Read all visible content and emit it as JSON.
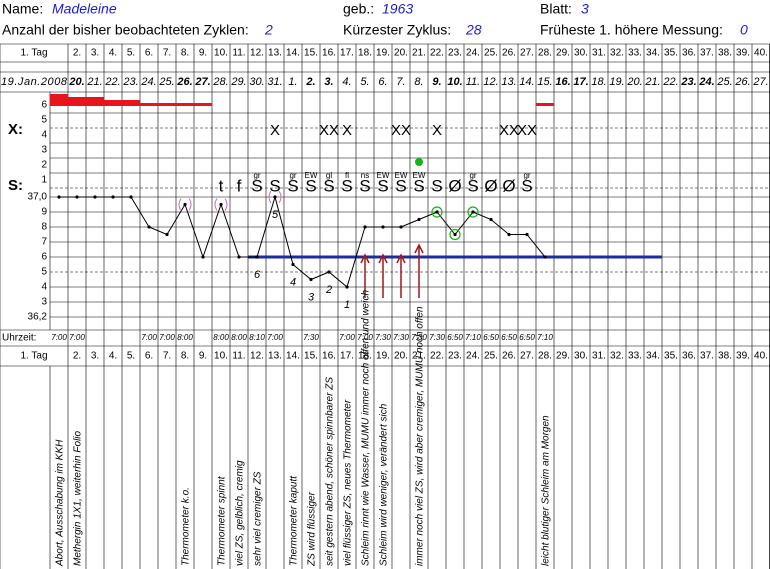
{
  "header": {
    "name_label": "Name:",
    "name": "Madeleine",
    "born_label": "geb.:",
    "born": "1963",
    "sheet_label": "Blatt:",
    "sheet": "3",
    "cycles_label": "Anzahl der bisher beobachteten Zyklen:",
    "cycles": "2",
    "shortest_label": "Kürzester Zyklus:",
    "shortest": "28",
    "earliest_label": "Früheste 1. höhere Messung:",
    "earliest": "0"
  },
  "days": [
    "1. Tag",
    "2.",
    "3.",
    "4.",
    "5.",
    "6.",
    "7.",
    "8.",
    "9.",
    "10.",
    "11.",
    "12.",
    "13.",
    "14.",
    "15.",
    "16.",
    "17.",
    "18.",
    "19.",
    "20.",
    "21.",
    "22.",
    "23.",
    "24.",
    "25.",
    "26.",
    "27.",
    "28.",
    "29.",
    "30.",
    "31.",
    "32.",
    "33.",
    "34.",
    "35.",
    "36.",
    "37.",
    "38.",
    "39.",
    "40."
  ],
  "dates": [
    {
      "label": "19.Jan.2008",
      "bold": false
    },
    {
      "label": "20.",
      "bold": true
    },
    {
      "label": "21.",
      "bold": false
    },
    {
      "label": "22.",
      "bold": false
    },
    {
      "label": "23.",
      "bold": false
    },
    {
      "label": "24.",
      "bold": false
    },
    {
      "label": "25.",
      "bold": false
    },
    {
      "label": "26.",
      "bold": true
    },
    {
      "label": "27.",
      "bold": true
    },
    {
      "label": "28.",
      "bold": false
    },
    {
      "label": "29.",
      "bold": false
    },
    {
      "label": "30.",
      "bold": false
    },
    {
      "label": "31.",
      "bold": false
    },
    {
      "label": "1.",
      "bold": false
    },
    {
      "label": "2.",
      "bold": true
    },
    {
      "label": "3.",
      "bold": true
    },
    {
      "label": "4.",
      "bold": false
    },
    {
      "label": "5.",
      "bold": false
    },
    {
      "label": "6.",
      "bold": false
    },
    {
      "label": "7.",
      "bold": false
    },
    {
      "label": "8.",
      "bold": false
    },
    {
      "label": "9.",
      "bold": true
    },
    {
      "label": "10.",
      "bold": true
    },
    {
      "label": "11.",
      "bold": false
    },
    {
      "label": "12.",
      "bold": false
    },
    {
      "label": "13.",
      "bold": false
    },
    {
      "label": "14.",
      "bold": false
    },
    {
      "label": "15.",
      "bold": false
    },
    {
      "label": "16.",
      "bold": true
    },
    {
      "label": "17.",
      "bold": true
    },
    {
      "label": "18.",
      "bold": false
    },
    {
      "label": "19.",
      "bold": false
    },
    {
      "label": "20.",
      "bold": false
    },
    {
      "label": "21.",
      "bold": false
    },
    {
      "label": "22.",
      "bold": false
    },
    {
      "label": "23.",
      "bold": true
    },
    {
      "label": "24.",
      "bold": true
    },
    {
      "label": "25.",
      "bold": false
    },
    {
      "label": "26.",
      "bold": false
    },
    {
      "label": "27.",
      "bold": false
    }
  ],
  "row_labels": [
    "6",
    "5",
    "4",
    "3",
    "2",
    "1"
  ],
  "bleeding": [
    4,
    3,
    3,
    2,
    2,
    1,
    1,
    1,
    1,
    null,
    null,
    null,
    null,
    null,
    null,
    null,
    null,
    null,
    null,
    null,
    null,
    null,
    null,
    null,
    null,
    null,
    null,
    1,
    null,
    null,
    null,
    null,
    null,
    null,
    null,
    null,
    null,
    null,
    null,
    null
  ],
  "x_label": "X:",
  "x_marks": [
    {
      "day": 13,
      "text": "X"
    },
    {
      "day": 16,
      "text": "XX"
    },
    {
      "day": 17,
      "text": "X"
    },
    {
      "day": 20,
      "text": "XX"
    },
    {
      "day": 22,
      "text": "X"
    },
    {
      "day": 26,
      "text": "XX"
    },
    {
      "day": 27,
      "text": "XX"
    }
  ],
  "peak_day": 21,
  "s_label": "S:",
  "s_marks": [
    {
      "day": 10,
      "text": "t",
      "gray": false
    },
    {
      "day": 11,
      "text": "f",
      "gray": false
    },
    {
      "day": 12,
      "text": "S",
      "gray": false
    },
    {
      "day": 13,
      "text": "S",
      "gray": false
    },
    {
      "day": 14,
      "text": "S",
      "gray": false
    },
    {
      "day": 15,
      "text": "S",
      "gray": false
    },
    {
      "day": 16,
      "text": "S",
      "gray": false
    },
    {
      "day": 17,
      "text": "S",
      "gray": false
    },
    {
      "day": 18,
      "text": "S",
      "gray": false
    },
    {
      "day": 19,
      "text": "S",
      "gray": false
    },
    {
      "day": 20,
      "text": "S",
      "gray": false
    },
    {
      "day": 21,
      "text": "S",
      "gray": false
    },
    {
      "day": 22,
      "text": "S",
      "gray": false
    },
    {
      "day": 23,
      "text": "Ø",
      "gray": true
    },
    {
      "day": 24,
      "text": "S",
      "gray": false
    },
    {
      "day": 25,
      "text": "Ø",
      "gray": true
    },
    {
      "day": 26,
      "text": "Ø",
      "gray": true
    },
    {
      "day": 27,
      "text": "S",
      "gray": false
    }
  ],
  "s_notes": [
    {
      "day": 12,
      "text": "gr"
    },
    {
      "day": 14,
      "text": "gr"
    },
    {
      "day": 15,
      "text": "EW"
    },
    {
      "day": 16,
      "text": "gl"
    },
    {
      "day": 17,
      "text": "fl"
    },
    {
      "day": 18,
      "text": "ns"
    },
    {
      "day": 19,
      "text": "EW"
    },
    {
      "day": 20,
      "text": "EW"
    },
    {
      "day": 21,
      "text": "EW"
    },
    {
      "day": 24,
      "text": "gr"
    },
    {
      "day": 27,
      "text": "gr"
    }
  ],
  "temperature": {
    "ticks": [
      {
        "value": 37.0,
        "label": "37,0"
      },
      {
        "value": 36.9,
        "label": "9"
      },
      {
        "value": 36.8,
        "label": "8"
      },
      {
        "value": 36.7,
        "label": "7"
      },
      {
        "value": 36.6,
        "label": "6"
      },
      {
        "value": 36.5,
        "label": "5"
      },
      {
        "value": 36.4,
        "label": "4"
      },
      {
        "value": 36.3,
        "label": "3"
      },
      {
        "value": 36.2,
        "label": "36,2"
      }
    ],
    "values": [
      37.0,
      37.0,
      37.0,
      37.0,
      37.0,
      36.8,
      36.75,
      36.95,
      36.6,
      36.95,
      36.6,
      36.6,
      37.0,
      36.55,
      36.45,
      36.5,
      36.4,
      36.8,
      36.8,
      36.8,
      36.85,
      36.9,
      36.75,
      36.9,
      36.85,
      36.75,
      36.75,
      36.6,
      null,
      null,
      null,
      null,
      null,
      null,
      null,
      null,
      null,
      null,
      null,
      null
    ],
    "coverline": {
      "value": 36.6,
      "from_day": 11,
      "to_day": 34
    },
    "circled_days": [
      22,
      23,
      24
    ],
    "excluded_days": [
      8,
      10,
      13
    ],
    "arrow_days": [
      18,
      19,
      20,
      21
    ],
    "count_labels": [
      {
        "day": 12,
        "label": "6"
      },
      {
        "day": 13,
        "label": "5"
      },
      {
        "day": 14,
        "label": "4"
      },
      {
        "day": 15,
        "label": "3"
      },
      {
        "day": 16,
        "label": "2"
      },
      {
        "day": 17,
        "label": "1"
      }
    ]
  },
  "time_label": "Uhrzeit:",
  "times": [
    "7:00",
    "7:00",
    null,
    null,
    null,
    "7:00",
    "7:00",
    "8:00",
    null,
    "8:00",
    "8:00",
    "8:10",
    "7:00",
    null,
    "7:30",
    null,
    "7:00",
    "7:00",
    "7:30",
    "7:30",
    "7:30",
    "7:30",
    "6:50",
    "7:10",
    "6:50",
    "6:50",
    "6:50",
    "7:10",
    null,
    null,
    null,
    null,
    null,
    null,
    null,
    null,
    null,
    null,
    null,
    null
  ],
  "notes": [
    {
      "day": 1,
      "text": "Abort, Ausschabung im KKH"
    },
    {
      "day": 2,
      "text": "Methergin 1X1, weiterhin Folio"
    },
    {
      "day": 8,
      "text": "Thermometer k.o."
    },
    {
      "day": 10,
      "text": "Thermometer spinnt"
    },
    {
      "day": 11,
      "text": "viel ZS, gelblich, cremig"
    },
    {
      "day": 12,
      "text": "sehr viel cremiger ZS"
    },
    {
      "day": 14,
      "text": "Thermometer kaputt"
    },
    {
      "day": 15,
      "text": "ZS wird flüssiger"
    },
    {
      "day": 16,
      "text": "seit gestern abend, schöner spinnbarer ZS"
    },
    {
      "day": 17,
      "text": "viel flüssiger ZS, neues Thermometer"
    },
    {
      "day": 18,
      "text": "Schleim rinnt wie Wasser, MUMU immer noch offen und weich"
    },
    {
      "day": 19,
      "text": "Schleim wird weniger, verändert sich"
    },
    {
      "day": 21,
      "text": "immer noch viel ZS, wird aber cremiger, MUMU noch offen"
    },
    {
      "day": 28,
      "text": "leicht blutiger Schleim am Morgen"
    }
  ]
}
